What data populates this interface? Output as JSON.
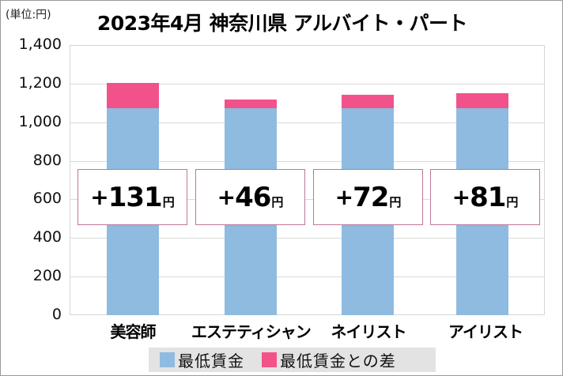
{
  "chart_data": {
    "type": "bar",
    "stacked": true,
    "title": "2023年4月 神奈川県 アルバイト・パート",
    "unit_label": "(単位:円)",
    "categories": [
      "美容師",
      "エステティシャン",
      "ネイリスト",
      "アイリスト"
    ],
    "series": [
      {
        "name": "最低賃金",
        "color": "#8fbbe0",
        "values": [
          1071,
          1071,
          1071,
          1071
        ]
      },
      {
        "name": "最低賃金との差",
        "color": "#f2528a",
        "values": [
          131,
          46,
          72,
          81
        ]
      }
    ],
    "annotations": [
      "+131円",
      "+46円",
      "+72円",
      "+81円"
    ],
    "ylim": [
      0,
      1400
    ],
    "yticks": [
      "0",
      "200",
      "400",
      "600",
      "800",
      "1,000",
      "1,200",
      "1,400"
    ],
    "xlabel": "",
    "ylabel": "",
    "grid": true,
    "legend_position": "bottom"
  },
  "labels": [
    {
      "plus": "+",
      "num": "131",
      "yen": "円"
    },
    {
      "plus": "+",
      "num": "46",
      "yen": "円"
    },
    {
      "plus": "+",
      "num": "72",
      "yen": "円"
    },
    {
      "plus": "+",
      "num": "81",
      "yen": "円"
    }
  ],
  "legend": [
    {
      "label": "最低賃金",
      "color": "#8fbbe0"
    },
    {
      "label": "最低賃金との差",
      "color": "#f2528a"
    }
  ]
}
